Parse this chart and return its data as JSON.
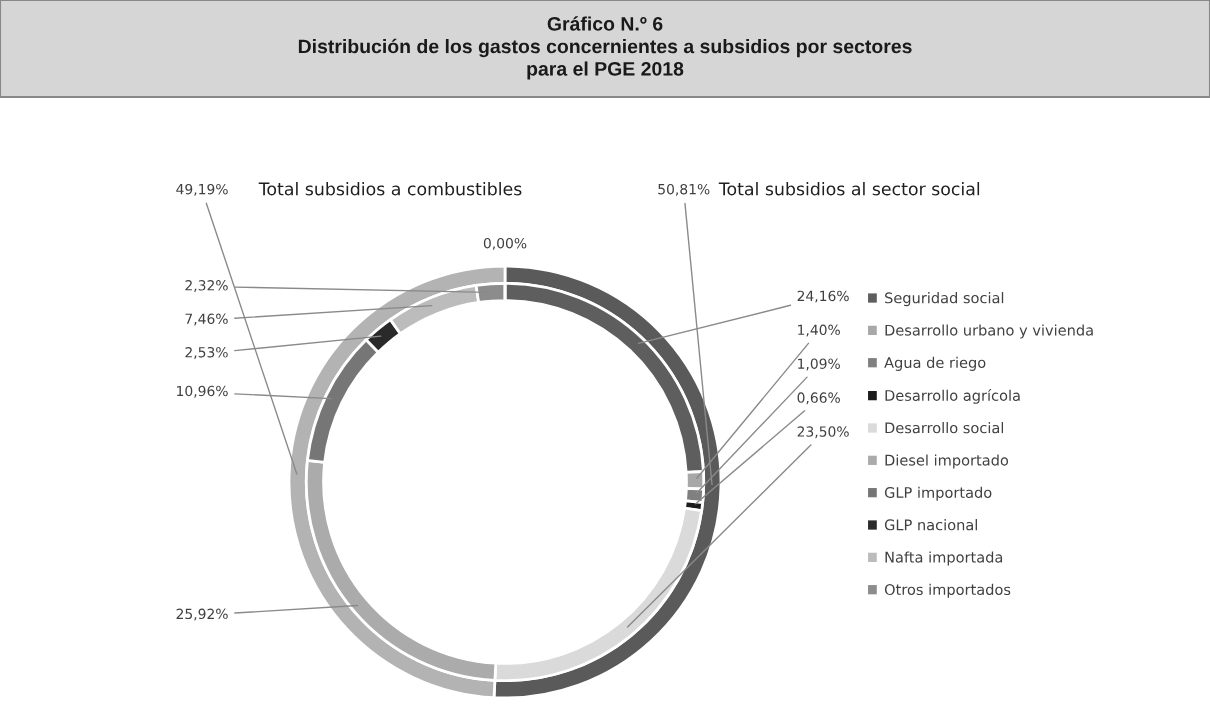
{
  "chart_data": {
    "type": "donut",
    "title": "Gráfico N.º 6\nDistribución de los gastos concernientes a subsidios por sectores\npara el PGE 2018",
    "legend": "right",
    "categories": [
      "Total subsidios al sector social",
      "Total subsidios a combustibles",
      "Seguridad social",
      "Desarrollo urbano y vivienda",
      "Agua de riego",
      "Desarrollo agrícola",
      "Desarrollo social",
      "Diesel importado",
      "GLP importado",
      "GLP nacional",
      "Nafta importada",
      "Otros importados",
      null
    ],
    "series": [
      {
        "values": [
          50.81,
          49.19,
          null,
          null,
          null,
          null,
          null,
          null,
          null,
          null,
          null,
          null,
          null
        ],
        "colors": [
          "#5a5a5a",
          "#b3b3b3",
          null,
          null,
          null,
          null,
          null,
          null,
          null,
          null,
          null,
          null,
          null
        ],
        "value_labels": [
          "50,81%",
          "49,19%",
          null,
          null,
          null,
          null,
          null,
          null,
          null,
          null,
          null,
          null,
          null
        ]
      },
      {
        "values": [
          null,
          null,
          24.16,
          1.4,
          1.09,
          0.66,
          23.5,
          25.92,
          10.96,
          2.53,
          7.46,
          2.32,
          0.0
        ],
        "colors": [
          null,
          null,
          "#5e5e5e",
          "#a8a8a8",
          "#808080",
          "#1c1c1c",
          "#dadada",
          "#ababab",
          "#767676",
          "#2a2a2a",
          "#bcbcbc",
          "#8c8c8c",
          "#4a4a4a"
        ],
        "value_labels": [
          null,
          null,
          "24,16%",
          "1,40%",
          "1,09%",
          "0,66%",
          "23,50%",
          "25,92%",
          "10,96%",
          "2,53%",
          "7,46%",
          "2,32%",
          "0,00%"
        ]
      }
    ]
  }
}
